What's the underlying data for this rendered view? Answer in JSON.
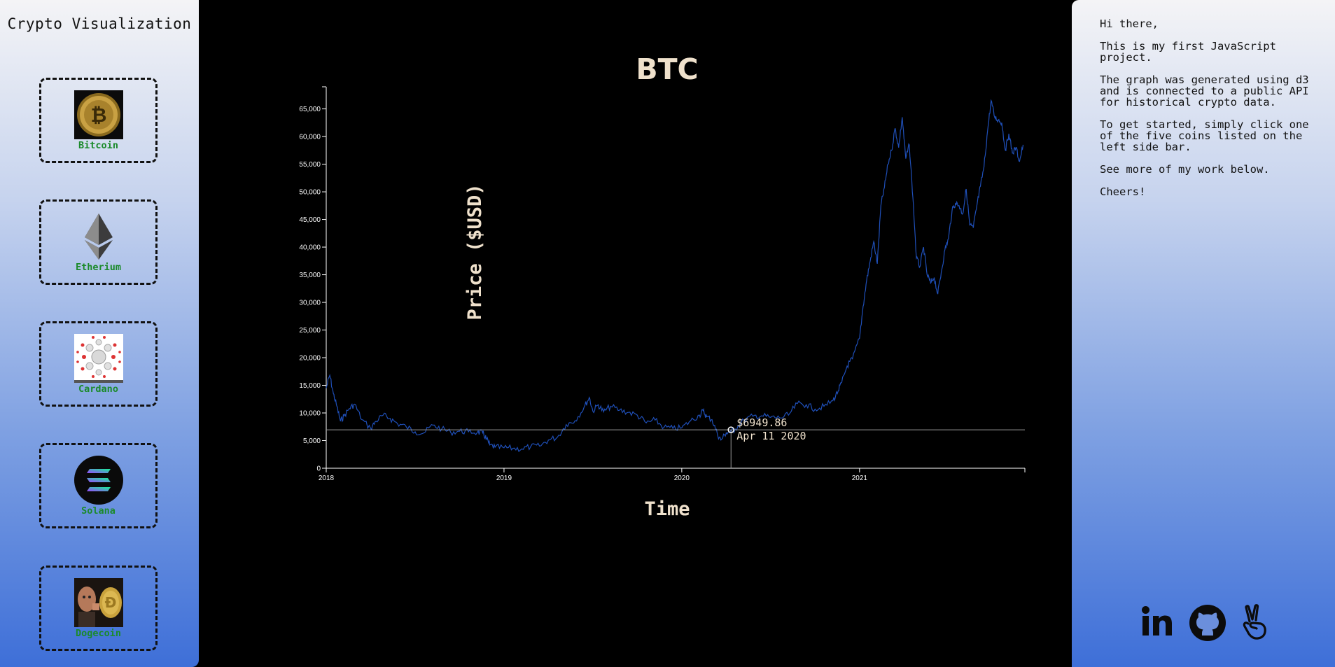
{
  "sidebar": {
    "title": "Crypto Visualization",
    "coins": [
      {
        "label": "Bitcoin",
        "icon": "bitcoin-coin-icon"
      },
      {
        "label": "Etherium",
        "icon": "ethereum-diamond-icon"
      },
      {
        "label": "Cardano",
        "icon": "cardano-icon"
      },
      {
        "label": "Solana",
        "icon": "solana-icon"
      },
      {
        "label": "Dogecoin",
        "icon": "dogecoin-icon"
      }
    ]
  },
  "info": {
    "paragraphs": [
      "Hi there,",
      "This is my first JavaScript project.",
      "The graph was generated using d3 and is connected to a public API for historical crypto data.",
      "To get started, simply click one of the five coins listed on the left side bar.",
      "See more of my work below.",
      "Cheers!"
    ],
    "social": [
      {
        "name": "linkedin-icon"
      },
      {
        "name": "github-icon"
      },
      {
        "name": "angellist-icon"
      }
    ]
  },
  "tooltip": {
    "price": "$6949.86",
    "date": "Apr 11 2020"
  },
  "colors": {
    "line": "#1f4fb8",
    "accent_green": "#1b8a2a",
    "text_light": "#efe1cc"
  },
  "chart_data": {
    "type": "line",
    "title": "BTC",
    "xlabel": "Time",
    "ylabel": "Price ($USD)",
    "xlim": [
      2018.0,
      2021.93
    ],
    "ylim": [
      0,
      69000
    ],
    "x_ticks": [
      "2018",
      "2019",
      "2020",
      "2021"
    ],
    "y_ticks": [
      "0",
      "5,000",
      "10,000",
      "15,000",
      "20,000",
      "25,000",
      "30,000",
      "35,000",
      "40,000",
      "45,000",
      "50,000",
      "55,000",
      "60,000",
      "65,000"
    ],
    "series": [
      {
        "x": [
          2018.0,
          2018.02,
          2018.04,
          2018.06,
          2018.08,
          2018.1,
          2018.13,
          2018.16,
          2018.2,
          2018.25,
          2018.28,
          2018.32,
          2018.36,
          2018.4,
          2018.45,
          2018.5,
          2018.55,
          2018.6,
          2018.65,
          2018.7,
          2018.75,
          2018.8,
          2018.85,
          2018.88,
          2018.9,
          2018.92,
          2018.95,
          2019.0,
          2019.05,
          2019.1,
          2019.15,
          2019.2,
          2019.25,
          2019.3,
          2019.35,
          2019.4,
          2019.45,
          2019.48,
          2019.5,
          2019.53,
          2019.56,
          2019.6,
          2019.65,
          2019.7,
          2019.75,
          2019.8,
          2019.85,
          2019.9,
          2019.95,
          2020.0,
          2020.05,
          2020.1,
          2020.12,
          2020.14,
          2020.17,
          2020.2,
          2020.22,
          2020.25,
          2020.28,
          2020.3,
          2020.35,
          2020.4,
          2020.45,
          2020.5,
          2020.55,
          2020.6,
          2020.65,
          2020.7,
          2020.75,
          2020.8,
          2020.85,
          2020.88,
          2020.9,
          2020.93,
          2020.96,
          2021.0,
          2021.02,
          2021.04,
          2021.06,
          2021.08,
          2021.1,
          2021.12,
          2021.14,
          2021.16,
          2021.18,
          2021.2,
          2021.22,
          2021.24,
          2021.26,
          2021.28,
          2021.3,
          2021.32,
          2021.34,
          2021.36,
          2021.38,
          2021.4,
          2021.42,
          2021.44,
          2021.46,
          2021.48,
          2021.5,
          2021.52,
          2021.54,
          2021.56,
          2021.58,
          2021.6,
          2021.62,
          2021.64,
          2021.66,
          2021.68,
          2021.7,
          2021.72,
          2021.74,
          2021.76,
          2021.78,
          2021.8,
          2021.82,
          2021.84,
          2021.86,
          2021.88,
          2021.9,
          2021.92
        ],
        "y": [
          14500,
          16800,
          13500,
          11200,
          8500,
          9500,
          10800,
          11600,
          8800,
          7200,
          8500,
          9600,
          9000,
          8100,
          7500,
          6600,
          6400,
          7800,
          7100,
          6500,
          6700,
          6600,
          6500,
          6400,
          5400,
          4200,
          3800,
          3700,
          3600,
          3500,
          3900,
          4000,
          5100,
          5600,
          7900,
          8600,
          11000,
          12800,
          10300,
          11500,
          10200,
          11200,
          10500,
          10100,
          9600,
          8200,
          8700,
          7400,
          7200,
          7300,
          8600,
          9600,
          10400,
          9300,
          8800,
          6200,
          5100,
          6400,
          6700,
          7100,
          8700,
          9400,
          9500,
          9200,
          9100,
          9600,
          11700,
          11500,
          10700,
          11200,
          12200,
          14000,
          15500,
          18500,
          19800,
          23500,
          29300,
          34000,
          37500,
          41000,
          37000,
          47500,
          50800,
          55000,
          57500,
          61500,
          58000,
          63500,
          56000,
          58500,
          49000,
          38000,
          36500,
          40000,
          35000,
          33500,
          34500,
          31500,
          35500,
          39500,
          41500,
          46500,
          48000,
          47500,
          46000,
          50500,
          44000,
          43500,
          47500,
          51000,
          54500,
          61000,
          66500,
          63500,
          63000,
          62500,
          57500,
          60500,
          57000,
          58000,
          55500,
          58500
        ]
      }
    ]
  }
}
